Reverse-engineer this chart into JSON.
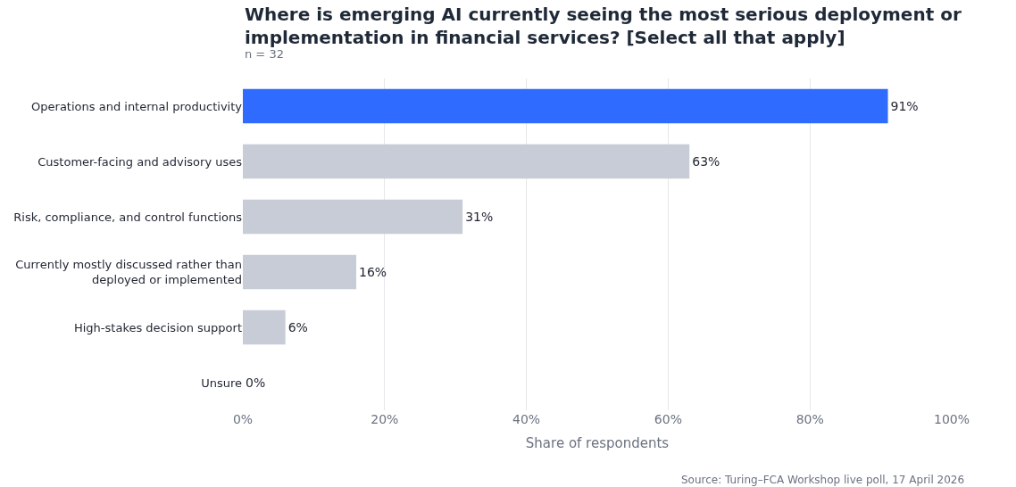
{
  "chart_data": {
    "type": "bar",
    "orientation": "horizontal",
    "title": "Where is emerging AI currently seeing the most serious deployment or\nimplementation in financial services? [Select all that apply]",
    "subtitle": "n = 32",
    "xlabel": "Share of respondents",
    "categories": [
      "Operations and internal productivity",
      "Customer-facing and advisory uses",
      "Risk, compliance, and control functions",
      "Currently mostly discussed rather than\ndeployed or implemented",
      "High-stakes decision support",
      "Unsure"
    ],
    "values": [
      91,
      63,
      31,
      16,
      6,
      0
    ],
    "value_labels": [
      "91%",
      "63%",
      "31%",
      "16%",
      "6%",
      "0%"
    ],
    "colors": [
      "#2f6bff",
      "#c8ccd6",
      "#c8ccd6",
      "#c8ccd6",
      "#c8ccd6",
      "#c8ccd6"
    ],
    "xlim": [
      0,
      100
    ],
    "xticks": [
      {
        "value": 0,
        "label": "0%"
      },
      {
        "value": 20,
        "label": "20%"
      },
      {
        "value": 40,
        "label": "40%"
      },
      {
        "value": 60,
        "label": "60%"
      },
      {
        "value": 80,
        "label": "80%"
      },
      {
        "value": 100,
        "label": "100%"
      }
    ],
    "grid": "x",
    "annotations": [
      "Source: Turing–FCA Workshop live poll, 17 April 2026"
    ]
  }
}
